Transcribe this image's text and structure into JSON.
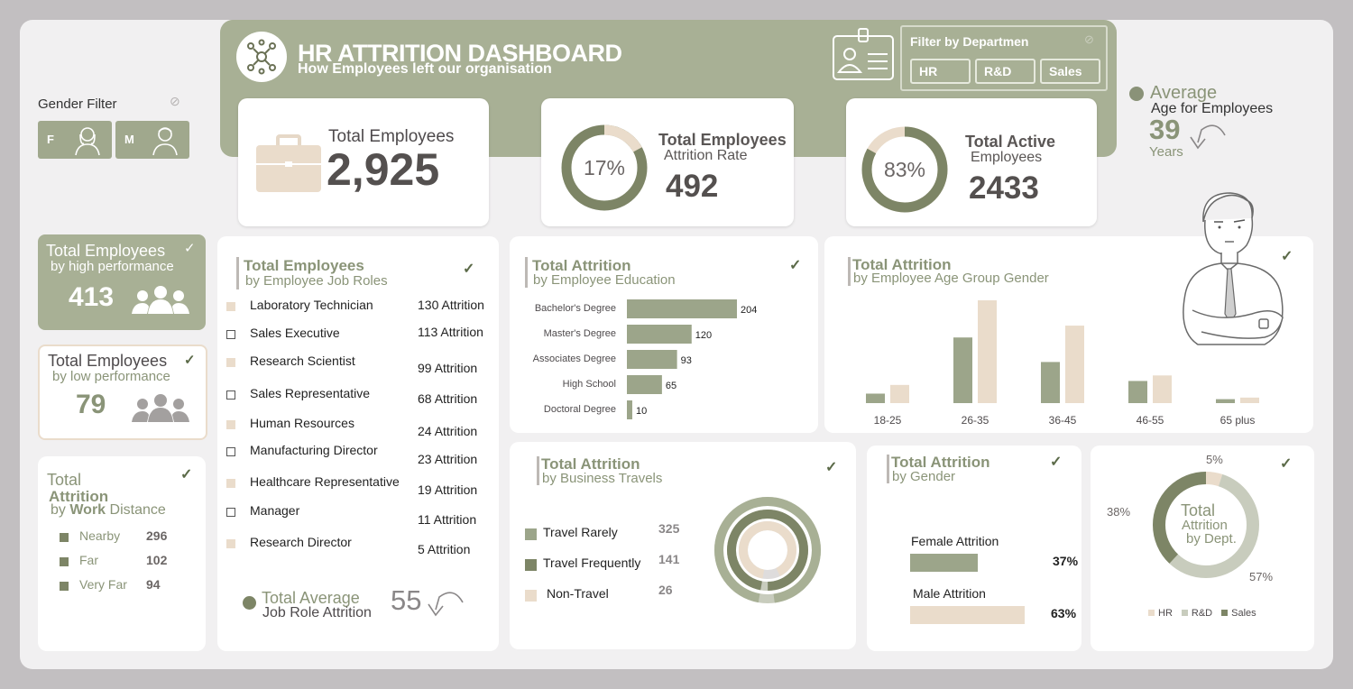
{
  "header": {
    "title": "HR ATTRITION DASHBOARD",
    "subtitle": "How Employees left our organisation"
  },
  "dept_filter": {
    "label": "Filter by Departmen",
    "options": [
      "HR",
      "R&D",
      "Sales"
    ]
  },
  "gender_filter": {
    "label": "Gender Filter",
    "options": [
      "F",
      "M"
    ]
  },
  "kpis": {
    "total_employees": {
      "label": "Total Employees",
      "value": "2,925"
    },
    "attrition": {
      "label": "Total Employees",
      "sub": "Attrition Rate",
      "value": "492",
      "pct": "17%",
      "pct_value": 17
    },
    "active": {
      "label": "Total Active",
      "sub": "Employees",
      "value": "2433",
      "pct": "83%",
      "pct_value": 83
    },
    "avg_age": {
      "label": "Average",
      "sub": "Age for Employees",
      "value": "39",
      "unit": "Years"
    }
  },
  "high_perf": {
    "title": "Total Employees",
    "sub": "by high performance",
    "value": "413"
  },
  "low_perf": {
    "title": "Total Employees",
    "sub": "by low performance",
    "value": "79"
  },
  "work_distance": {
    "title1": "Total",
    "title2": "Attrition",
    "sub_by": "by",
    "sub_work": "Work",
    "sub_rest": "Distance",
    "items": [
      {
        "label": "Nearby",
        "value": "296"
      },
      {
        "label": "Far",
        "value": "102"
      },
      {
        "label": "Very Far",
        "value": "94"
      }
    ]
  },
  "job_roles": {
    "title": "Total Employees",
    "sub": "by Employee Job Roles",
    "items": [
      {
        "role": "Laboratory Technician",
        "value": "130 Attrition"
      },
      {
        "role": "Sales Executive",
        "value": "113 Attrition"
      },
      {
        "role": "Research Scientist",
        "value": "99 Attrition"
      },
      {
        "role": "Sales Representative",
        "value": "68 Attrition"
      },
      {
        "role": "Human Resources",
        "value": "24 Attrition"
      },
      {
        "role": "Manufacturing Director",
        "value": "23 Attrition"
      },
      {
        "role": "Healthcare Representative",
        "value": "19 Attrition"
      },
      {
        "role": "Manager",
        "value": "11 Attrition"
      },
      {
        "role": "Research Director",
        "value": "5 Attrition"
      }
    ],
    "avg_label1": "Total Average",
    "avg_label2": "Job Role Attrition",
    "avg_value": "55"
  },
  "education": {
    "title": "Total Attrition",
    "sub": "by Employee Education"
  },
  "age_group": {
    "title": "Total Attrition",
    "sub": "by Employee Age Group Gender"
  },
  "travel": {
    "title": "Total Attrition",
    "sub": "by Business Travels",
    "items": [
      {
        "label": "Travel Rarely",
        "value": "325"
      },
      {
        "label": "Travel Frequently",
        "value": "141"
      },
      {
        "label": "Non-Travel",
        "value": "26"
      }
    ]
  },
  "gender": {
    "title": "Total Attrition",
    "sub": "by Gender",
    "items": [
      {
        "label": "Female Attrition",
        "pct": "37%",
        "value": 37
      },
      {
        "label": "Male Attrition",
        "pct": "63%",
        "value": 63
      }
    ]
  },
  "dept": {
    "center1": "Total",
    "center2": "Attrition",
    "center3": "by Dept.",
    "labels": [
      "5%",
      "38%",
      "57%"
    ],
    "legend": [
      "HR",
      "R&D",
      "Sales"
    ]
  },
  "colors": {
    "olive": "#9ca58a",
    "olive_dark": "#7d8566",
    "beige": "#eadccb",
    "header_bg": "#a8b095"
  },
  "chart_data": [
    {
      "type": "bar",
      "title": "Total Attrition",
      "subtitle": "by Employee Education",
      "categories": [
        "Bachelor's Degree",
        "Master's Degree",
        "Associates Degree",
        "High School",
        "Doctoral Degree"
      ],
      "values": [
        204,
        120,
        93,
        65,
        10
      ],
      "orientation": "horizontal"
    },
    {
      "type": "bar",
      "title": "Total Attrition",
      "subtitle": "by Employee Age Group Gender",
      "categories": [
        "18-25",
        "26-35",
        "36-45",
        "46-55",
        "65 plus"
      ],
      "series": [
        {
          "values": [
            12,
            83,
            52,
            28,
            5
          ]
        },
        {
          "values": [
            23,
            130,
            98,
            35,
            7
          ]
        }
      ]
    },
    {
      "type": "pie",
      "title": "Total Attrition",
      "subtitle": "by Business Travels",
      "categories": [
        "Travel Rarely",
        "Travel Frequently",
        "Non-Travel"
      ],
      "values": [
        325,
        141,
        26
      ]
    },
    {
      "type": "pie",
      "title": "Total Attrition by Dept.",
      "categories": [
        "HR",
        "R&D",
        "Sales"
      ],
      "values": [
        5,
        57,
        38
      ]
    }
  ]
}
